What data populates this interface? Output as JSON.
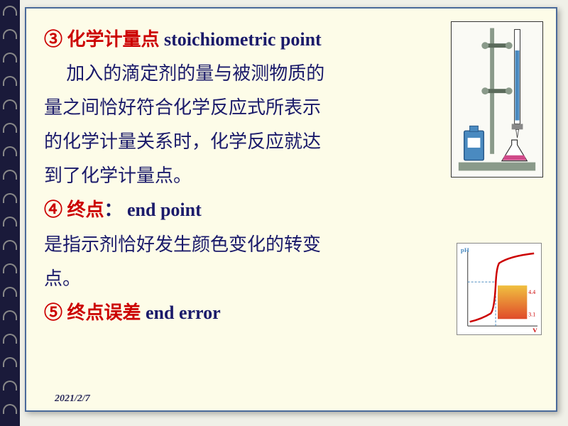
{
  "slide": {
    "lines": [
      {
        "text": "③ 化学计量点 ",
        "red": true,
        "bold": true,
        "suffix": "stoichiometric point",
        "suffixBold": true
      },
      {
        "text": "加入的滴定剂的量与被测物质的",
        "indent": true
      },
      {
        "text": "量之间恰好符合化学反应式所表示"
      },
      {
        "text": "的化学计量关系时，化学反应就达"
      },
      {
        "text": "到了化学计量点。"
      },
      {
        "text": "④ 终点",
        "red": true,
        "bold": true,
        "suffix": "： end point",
        "suffixBold": true
      },
      {
        "text": "是指示剂恰好发生颜色变化的转变"
      },
      {
        "text": "点。"
      },
      {
        "text": "⑤ 终点误差 ",
        "red": true,
        "bold": true,
        "suffix": "end error",
        "suffixBold": true
      }
    ],
    "date": "2021/2/7"
  },
  "burette": {
    "stand_color": "#8a9a8a",
    "bottle_color": "#4a8ac0",
    "flask_liquid": "#d04a8a",
    "burette_liquid": "#4a8ac0"
  },
  "curve": {
    "line_color": "#cc0000",
    "dash_color": "#4a8ac0",
    "grad_top": "#f0c040",
    "grad_bot": "#e04a2a",
    "ylabel": "pH",
    "xlabel": "V",
    "tick1": "4.4",
    "tick2": "3.1"
  },
  "spiral": {
    "count": 18,
    "spacing": 33,
    "start": 8
  }
}
